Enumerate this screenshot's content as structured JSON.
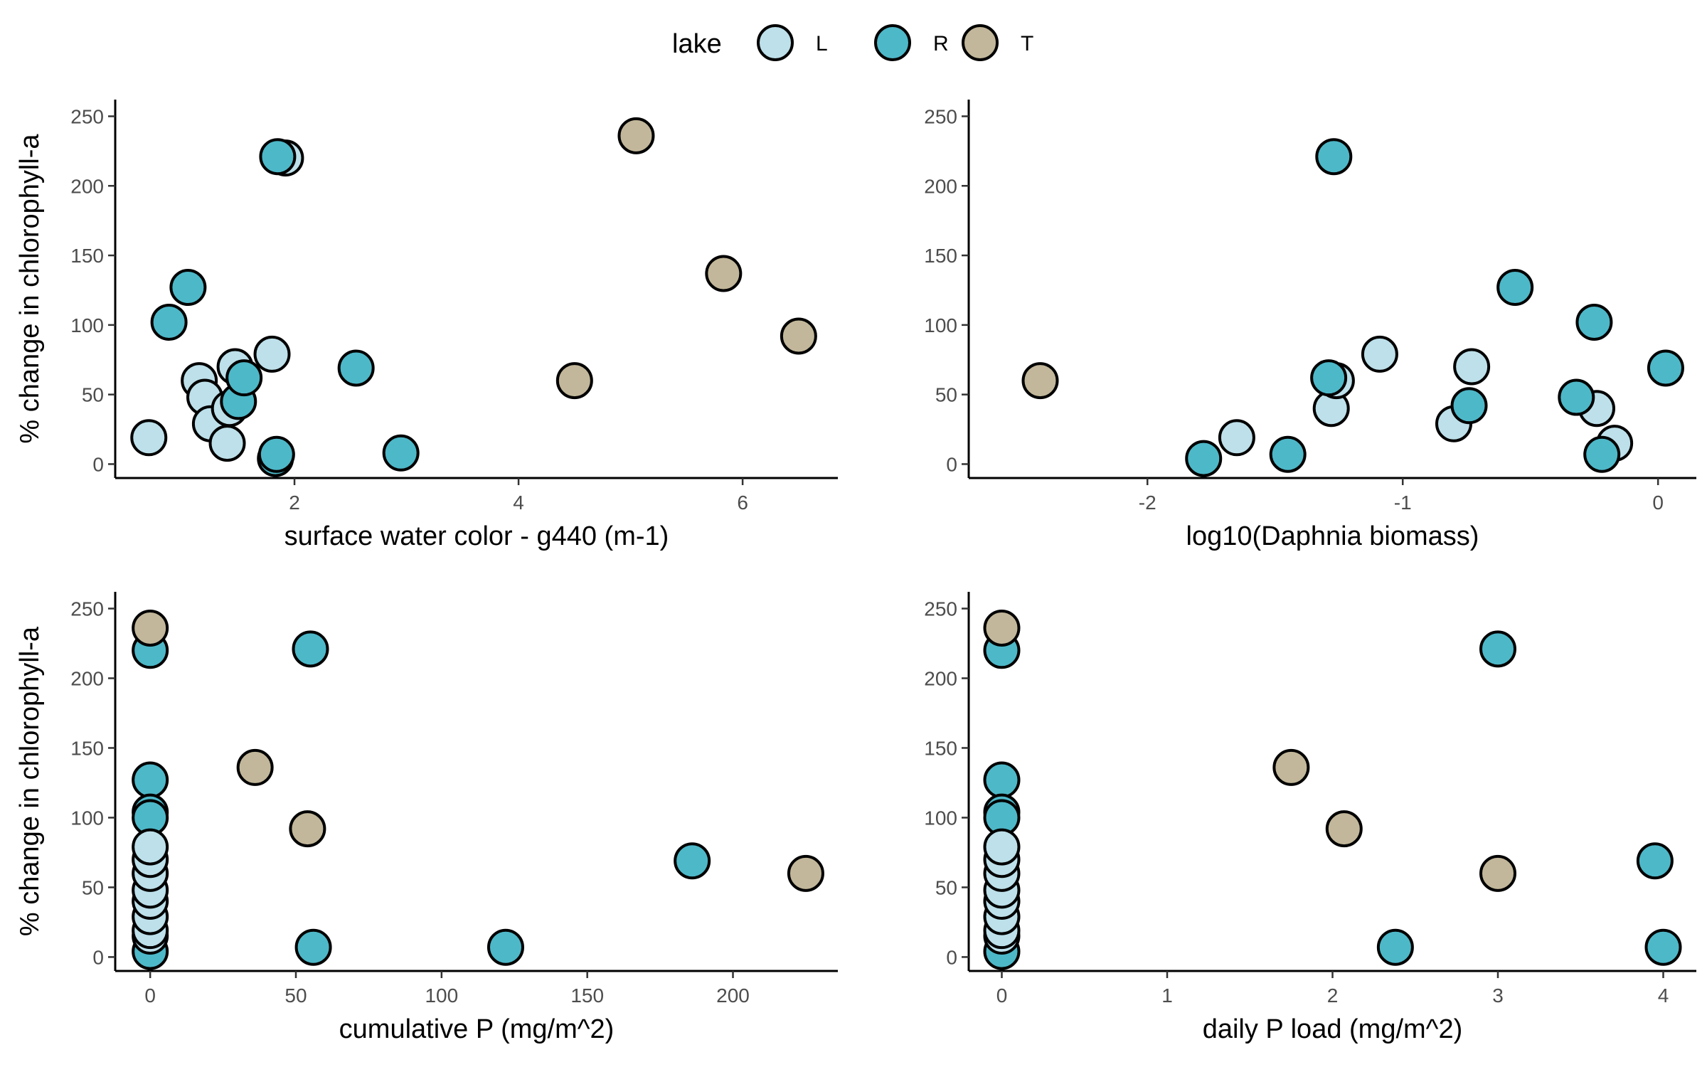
{
  "legend": {
    "title": "lake",
    "entries": [
      {
        "label": "L",
        "color": "#bde0ea"
      },
      {
        "label": "R",
        "color": "#4db8c8"
      },
      {
        "label": "T",
        "color": "#c2b79a"
      }
    ]
  },
  "colors": {
    "L": "#bde0ea",
    "R": "#4db8c8",
    "T": "#c2b79a",
    "outline": "#000000"
  },
  "chart_data": [
    {
      "type": "scatter",
      "xlabel": "surface water color - g440 (m-1)",
      "ylabel": "% change in chlorophyll-a",
      "xlim": [
        0.4,
        6.85
      ],
      "ylim": [
        -10,
        262
      ],
      "xticks": [
        2,
        4,
        6
      ],
      "yticks": [
        0,
        50,
        100,
        150,
        200,
        250
      ],
      "series": [
        {
          "group": "L",
          "points": [
            [
              0.7,
              19
            ],
            [
              1.15,
              60
            ],
            [
              1.2,
              48
            ],
            [
              1.25,
              29
            ],
            [
              1.4,
              15
            ],
            [
              1.42,
              40
            ],
            [
              1.47,
              70
            ],
            [
              1.8,
              79
            ],
            [
              1.92,
              220
            ]
          ]
        },
        {
          "group": "R",
          "points": [
            [
              0.88,
              102
            ],
            [
              1.05,
              127
            ],
            [
              1.5,
              45
            ],
            [
              1.55,
              62
            ],
            [
              1.85,
              221
            ],
            [
              1.83,
              4
            ],
            [
              1.84,
              7
            ],
            [
              2.55,
              69
            ],
            [
              2.95,
              8
            ]
          ]
        },
        {
          "group": "T",
          "points": [
            [
              5.05,
              236
            ],
            [
              5.83,
              137
            ],
            [
              6.5,
              92
            ],
            [
              4.5,
              60
            ]
          ]
        }
      ]
    },
    {
      "type": "scatter",
      "xlabel": "log10(Daphnia biomass)",
      "ylabel": "",
      "xlim": [
        -2.7,
        0.15
      ],
      "ylim": [
        -10,
        262
      ],
      "xticks": [
        -2,
        -1,
        0
      ],
      "yticks": [
        0,
        50,
        100,
        150,
        200,
        250
      ],
      "series": [
        {
          "group": "L",
          "points": [
            [
              -1.65,
              19
            ],
            [
              -1.28,
              40
            ],
            [
              -1.26,
              60
            ],
            [
              -1.09,
              79
            ],
            [
              -0.8,
              29
            ],
            [
              -0.73,
              70
            ],
            [
              -0.24,
              40
            ],
            [
              -0.17,
              15
            ]
          ]
        },
        {
          "group": "R",
          "points": [
            [
              -1.27,
              221
            ],
            [
              -1.78,
              4
            ],
            [
              -1.45,
              7
            ],
            [
              -1.29,
              62
            ],
            [
              -0.74,
              42
            ],
            [
              -0.56,
              127
            ],
            [
              -0.32,
              48
            ],
            [
              -0.25,
              102
            ],
            [
              -0.22,
              7
            ],
            [
              0.03,
              69
            ]
          ]
        },
        {
          "group": "T",
          "points": [
            [
              -2.42,
              60
            ]
          ]
        }
      ]
    },
    {
      "type": "scatter",
      "xlabel": "cumulative P (mg/m^2)",
      "ylabel": "% change in chlorophyll-a",
      "xlim": [
        -12,
        236
      ],
      "ylim": [
        -10,
        262
      ],
      "xticks": [
        0,
        50,
        100,
        150,
        200
      ],
      "yticks": [
        0,
        50,
        100,
        150,
        200,
        250
      ],
      "series": [
        {
          "group": "R",
          "points": [
            [
              0,
              4
            ],
            [
              0,
              127
            ],
            [
              0,
              104
            ],
            [
              0,
              100
            ],
            [
              0,
              220
            ],
            [
              55,
              221
            ],
            [
              56,
              7
            ],
            [
              122,
              7
            ],
            [
              186,
              69
            ]
          ]
        },
        {
          "group": "L",
          "points": [
            [
              0,
              15
            ],
            [
              0,
              19
            ],
            [
              0,
              29
            ],
            [
              0,
              40
            ],
            [
              0,
              48
            ],
            [
              0,
              60
            ],
            [
              0,
              70
            ],
            [
              0,
              79
            ]
          ]
        },
        {
          "group": "T",
          "points": [
            [
              0,
              236
            ],
            [
              36,
              136
            ],
            [
              54,
              92
            ],
            [
              225,
              60
            ]
          ]
        }
      ]
    },
    {
      "type": "scatter",
      "xlabel": "daily P load (mg/m^2)",
      "ylabel": "",
      "xlim": [
        -0.2,
        4.2
      ],
      "ylim": [
        -10,
        262
      ],
      "xticks": [
        0,
        1,
        2,
        3,
        4
      ],
      "yticks": [
        0,
        50,
        100,
        150,
        200,
        250
      ],
      "series": [
        {
          "group": "R",
          "points": [
            [
              0,
              4
            ],
            [
              0,
              127
            ],
            [
              0,
              104
            ],
            [
              0,
              100
            ],
            [
              0,
              220
            ],
            [
              3.0,
              221
            ],
            [
              2.38,
              7
            ],
            [
              3.95,
              69
            ],
            [
              4.0,
              7
            ]
          ]
        },
        {
          "group": "L",
          "points": [
            [
              0,
              15
            ],
            [
              0,
              19
            ],
            [
              0,
              29
            ],
            [
              0,
              40
            ],
            [
              0,
              48
            ],
            [
              0,
              60
            ],
            [
              0,
              70
            ],
            [
              0,
              79
            ]
          ]
        },
        {
          "group": "T",
          "points": [
            [
              0,
              236
            ],
            [
              1.75,
              136
            ],
            [
              2.07,
              92
            ],
            [
              3.0,
              60
            ]
          ]
        }
      ]
    }
  ]
}
